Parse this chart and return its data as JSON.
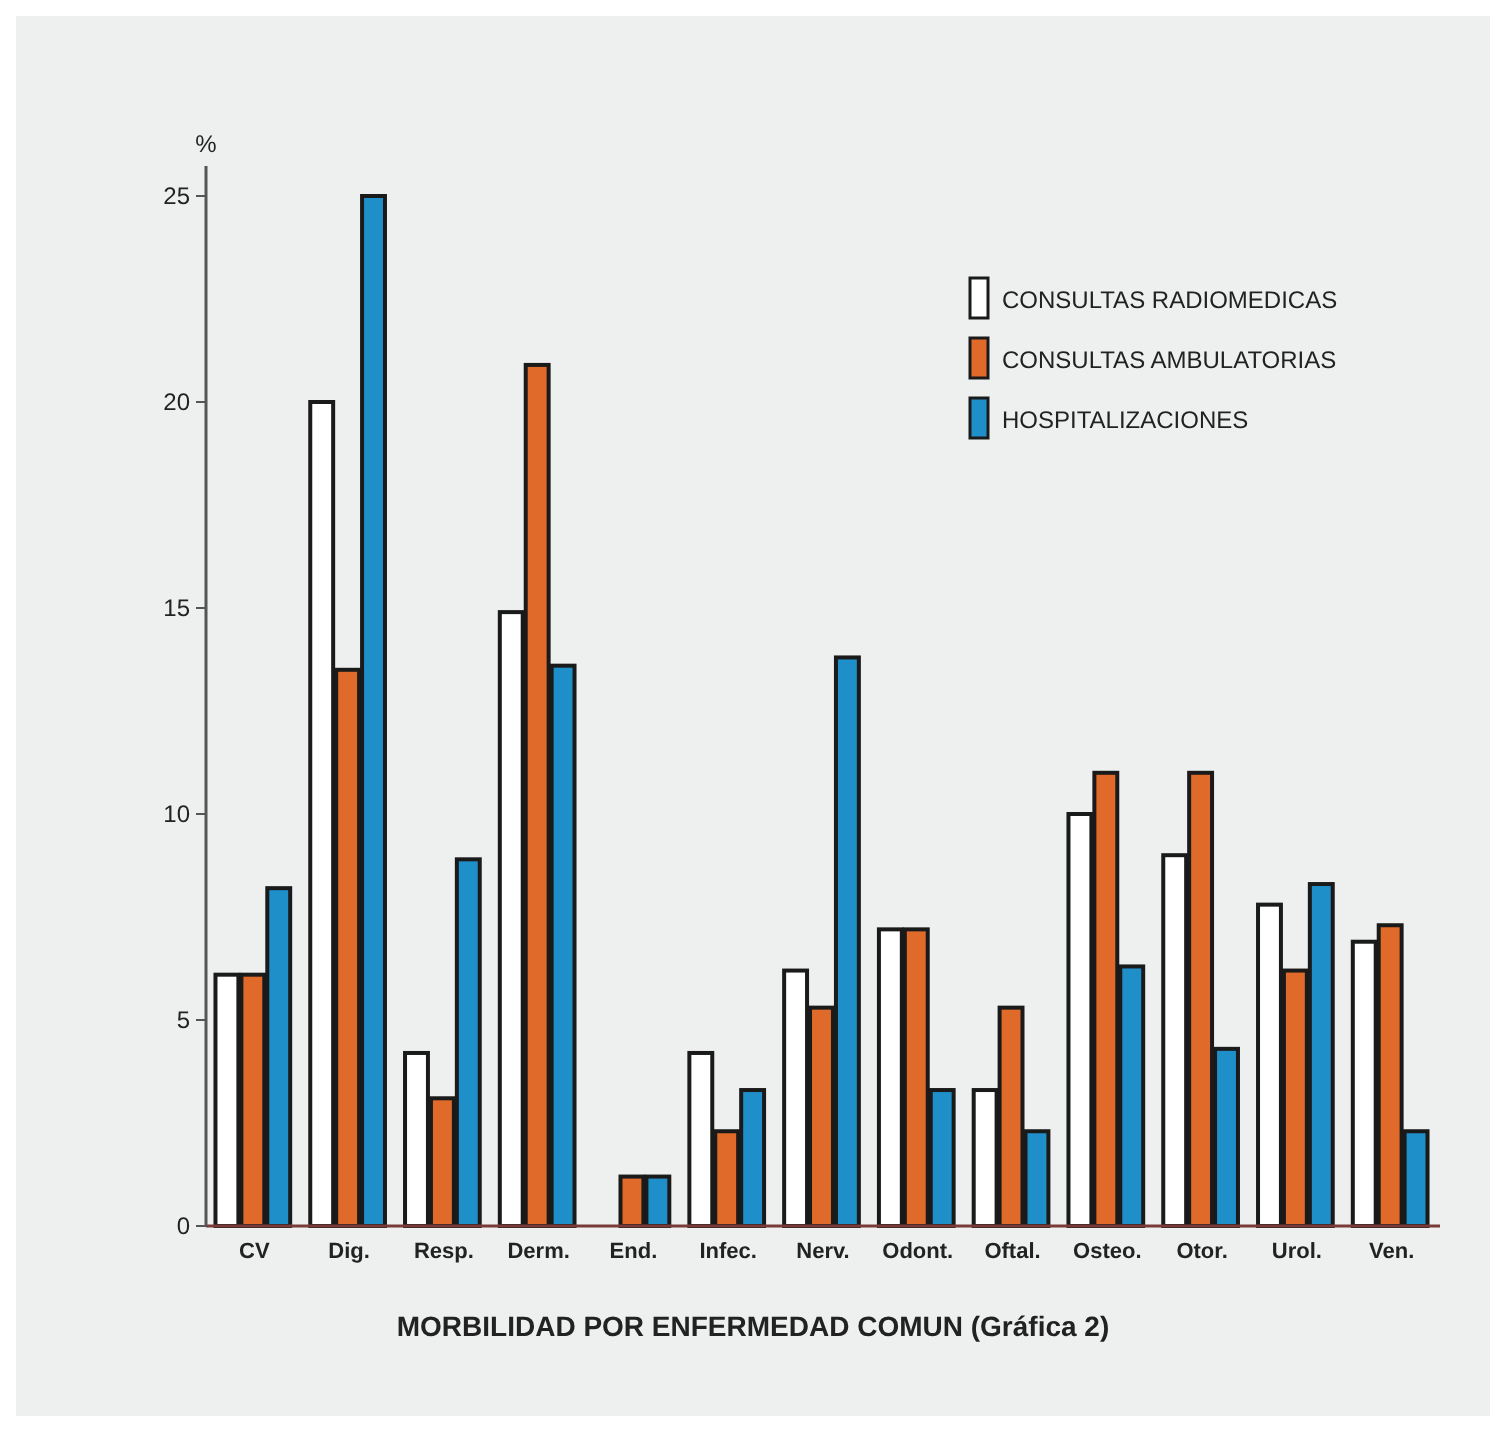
{
  "chart_data": {
    "type": "bar",
    "title": "MORBILIDAD POR ENFERMEDAD COMUN (Gráfica 2)",
    "ylabel": "%",
    "categories": [
      "CV",
      "Dig.",
      "Resp.",
      "Derm.",
      "End.",
      "Infec.",
      "Nerv.",
      "Odont.",
      "Oftal.",
      "Osteo.",
      "Otor.",
      "Urol.",
      "Ven."
    ],
    "series": [
      {
        "name": "CONSULTAS RADIOMEDICAS",
        "color": "#ffffff",
        "values": [
          6.1,
          20.0,
          4.2,
          14.9,
          0,
          4.2,
          6.2,
          7.2,
          3.3,
          10.0,
          9.0,
          7.8,
          6.9
        ]
      },
      {
        "name": "CONSULTAS AMBULATORIAS",
        "color": "#e06a2a",
        "values": [
          6.1,
          13.5,
          3.1,
          20.9,
          1.2,
          2.3,
          5.3,
          7.2,
          5.3,
          11.0,
          11.0,
          6.2,
          7.3
        ]
      },
      {
        "name": "HOSPITALIZACIONES",
        "color": "#1f8fc9",
        "values": [
          8.2,
          25.0,
          8.9,
          13.6,
          1.2,
          3.3,
          13.8,
          3.3,
          2.3,
          6.3,
          4.3,
          8.3,
          2.3
        ]
      }
    ],
    "ylim": [
      0,
      25
    ],
    "yticks": [
      0,
      5,
      10,
      15,
      20,
      25
    ],
    "grid": false,
    "legend": "top right"
  }
}
